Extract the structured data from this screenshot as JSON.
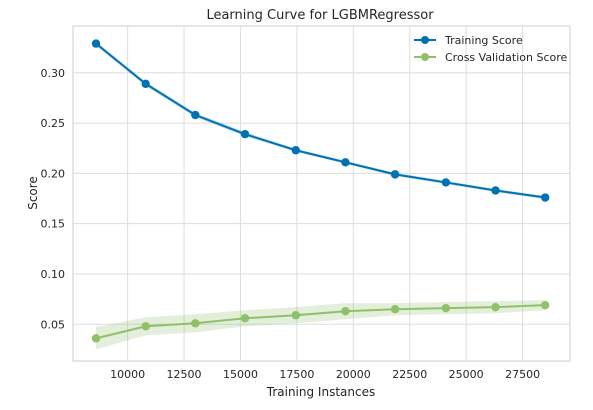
{
  "chart_data": {
    "type": "line",
    "title": "Learning Curve for LGBMRegressor",
    "xlabel": "Training Instances",
    "ylabel": "Score",
    "xlim": [
      7580,
      29600
    ],
    "ylim": [
      0.0135,
      0.3465
    ],
    "xticks": [
      10000,
      12500,
      15000,
      17500,
      20000,
      22500,
      25000,
      27500
    ],
    "yticks": [
      0.05,
      0.1,
      0.15,
      0.2,
      0.25,
      0.3
    ],
    "ytick_labels": [
      "0.05",
      "0.10",
      "0.15",
      "0.20",
      "0.25",
      "0.30"
    ],
    "grid": true,
    "legend_position": "top-right",
    "x": [
      8600,
      10800,
      13000,
      15200,
      17450,
      19650,
      21850,
      24100,
      26300,
      28500
    ],
    "series": [
      {
        "name": "Training Score",
        "color": "#0072b2",
        "values": [
          0.329,
          0.289,
          0.258,
          0.239,
          0.223,
          0.211,
          0.199,
          0.191,
          0.183,
          0.176
        ],
        "band_halfwidth": [
          0.002,
          0.002,
          0.002,
          0.002,
          0.0015,
          0.0015,
          0.0015,
          0.0015,
          0.0015,
          0.0015
        ]
      },
      {
        "name": "Cross Validation Score",
        "color": "#8fc06a",
        "values": [
          0.036,
          0.048,
          0.051,
          0.056,
          0.059,
          0.063,
          0.065,
          0.066,
          0.067,
          0.069
        ],
        "band_halfwidth": [
          0.011,
          0.009,
          0.009,
          0.008,
          0.008,
          0.008,
          0.006,
          0.006,
          0.006,
          0.005
        ]
      }
    ]
  }
}
